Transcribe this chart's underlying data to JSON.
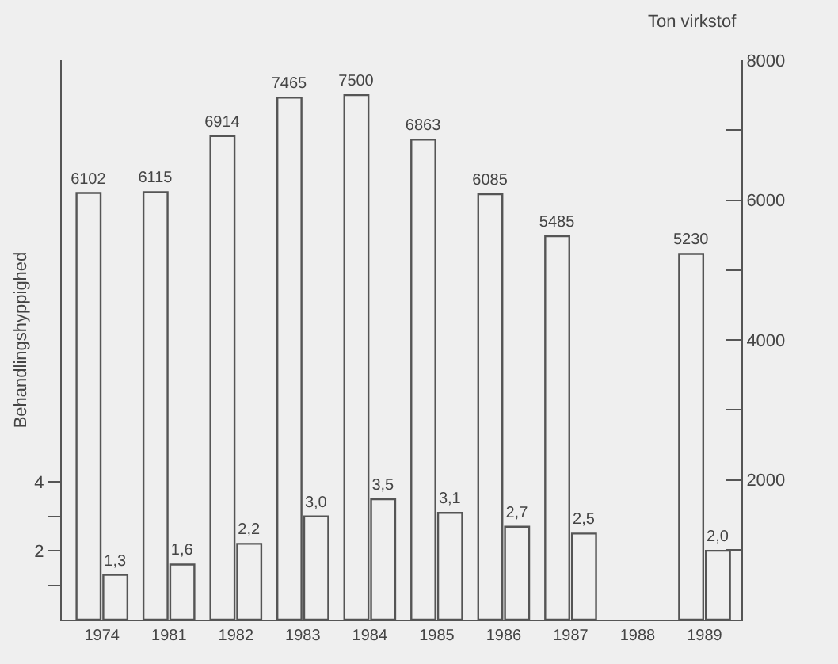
{
  "chart_data": {
    "type": "bar",
    "ylabel": "Behandlingshyppighed",
    "y2label": "Ton virkstof",
    "categories": [
      "1974",
      "1981",
      "1982",
      "1983",
      "1984",
      "1985",
      "1986",
      "1987",
      "1988",
      "1989"
    ],
    "series": [
      {
        "color": "#555555",
        "axis": "y2",
        "values": [
          6102,
          6115,
          6914,
          7465,
          7500,
          6863,
          6085,
          5485,
          null,
          5230
        ],
        "value_labels": [
          "6102",
          "6115",
          "6914",
          "7465",
          "7500",
          "6863",
          "6085",
          "5485",
          null,
          "5230"
        ]
      },
      {
        "color": "#555555",
        "values": [
          1.3,
          1.6,
          2.2,
          3.0,
          3.5,
          3.1,
          2.7,
          2.5,
          null,
          2.0
        ],
        "value_labels": [
          "1,3",
          "1,6",
          "2,2",
          "3,0",
          "3,5",
          "3,1",
          "2,7",
          "2,5",
          null,
          "2,0"
        ]
      }
    ],
    "ylim": [
      0,
      16.25
    ],
    "yticks": [
      {
        "value": 1,
        "label": null
      },
      2,
      {
        "value": 3,
        "label": null
      },
      4
    ],
    "y2lim": [
      0,
      8000
    ],
    "y2ticks": [
      {
        "value": 1000,
        "label": null
      },
      2000,
      {
        "value": 3000,
        "label": null
      },
      4000,
      {
        "value": 5000,
        "label": null
      },
      6000,
      {
        "value": 7000,
        "label": null
      },
      8000
    ],
    "grid": false
  }
}
